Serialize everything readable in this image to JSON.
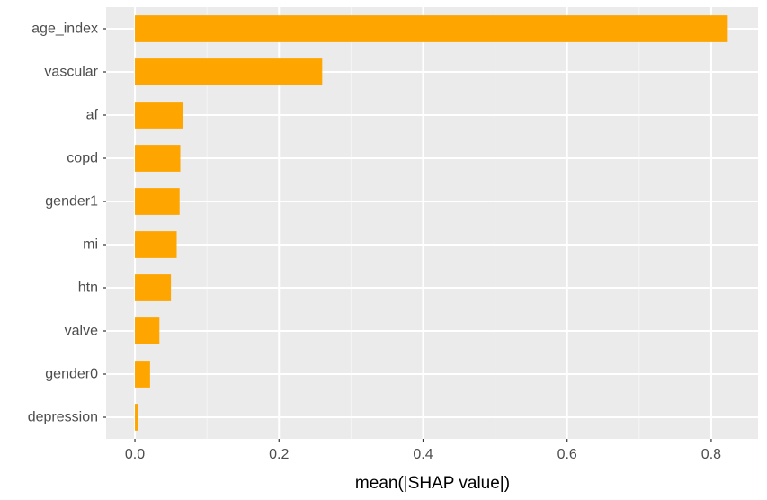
{
  "chart_data": {
    "type": "bar",
    "orientation": "horizontal",
    "categories": [
      "age_index",
      "vascular",
      "af",
      "copd",
      "gender1",
      "mi",
      "htn",
      "valve",
      "gender0",
      "depression"
    ],
    "values": [
      0.823,
      0.26,
      0.067,
      0.063,
      0.062,
      0.058,
      0.05,
      0.034,
      0.021,
      0.004
    ],
    "title": "",
    "xlabel": "mean(|SHAP value|)",
    "ylabel": "",
    "xlim": [
      -0.04,
      0.865
    ],
    "xticks": [
      0.0,
      0.2,
      0.4,
      0.6,
      0.8
    ],
    "xtick_labels": [
      "0.0",
      "0.2",
      "0.4",
      "0.6",
      "0.8"
    ],
    "grid": true,
    "legend": "none",
    "colors": {
      "bar": "#FFA500",
      "panel_background": "#EBEBEB",
      "grid_major": "#FFFFFF",
      "grid_minor": "#F5F5F5",
      "tick_text": "#4D4D4D",
      "axis_title": "#000000",
      "page_background": "#FFFFFF"
    }
  }
}
